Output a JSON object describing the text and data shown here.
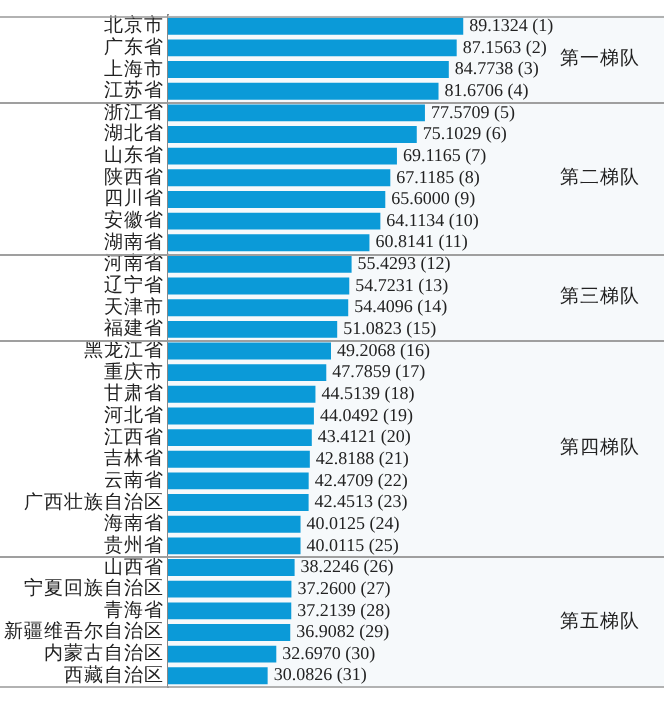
{
  "chart_data": {
    "type": "bar",
    "orientation": "horizontal",
    "categories": [
      "北京市",
      "广东省",
      "上海市",
      "江苏省",
      "浙江省",
      "湖北省",
      "山东省",
      "陕西省",
      "四川省",
      "安徽省",
      "湖南省",
      "河南省",
      "辽宁省",
      "天津市",
      "福建省",
      "黑龙江省",
      "重庆市",
      "甘肃省",
      "河北省",
      "江西省",
      "吉林省",
      "云南省",
      "广西壮族自治区",
      "海南省",
      "贵州省",
      "山西省",
      "宁夏回族自治区",
      "青海省",
      "新疆维吾尔自治区",
      "内蒙古自治区",
      "西藏自治区"
    ],
    "values": [
      89.1324,
      87.1563,
      84.7738,
      81.6706,
      77.5709,
      75.1029,
      69.1165,
      67.1185,
      65.6,
      64.1134,
      60.8141,
      55.4293,
      54.7231,
      54.4096,
      51.0823,
      49.2068,
      47.7859,
      44.5139,
      44.0492,
      43.4121,
      42.8188,
      42.4709,
      42.4513,
      40.0125,
      40.0115,
      38.2246,
      37.26,
      37.2139,
      36.9082,
      32.697,
      30.0826
    ],
    "value_labels": [
      "89.1324 (1)",
      "87.1563 (2)",
      "84.7738 (3)",
      "81.6706 (4)",
      "77.5709 (5)",
      "75.1029 (6)",
      "69.1165 (7)",
      "67.1185 (8)",
      "65.6000 (9)",
      "64.1134 (10)",
      "60.8141 (11)",
      "55.4293 (12)",
      "54.7231 (13)",
      "54.4096 (14)",
      "51.0823 (15)",
      "49.2068 (16)",
      "47.7859 (17)",
      "44.5139 (18)",
      "44.0492 (19)",
      "43.4121 (20)",
      "42.8188 (21)",
      "42.4709 (22)",
      "42.4513 (23)",
      "40.0125 (24)",
      "40.0115 (25)",
      "38.2246 (26)",
      "37.2600 (27)",
      "37.2139 (28)",
      "36.9082 (29)",
      "32.6970 (30)",
      "30.0826 (31)"
    ],
    "color": "#0b9ad8",
    "bands": [
      {
        "axis": "y",
        "from": "北京市",
        "to": "江苏省",
        "label": "第一梯队",
        "color": "#f6f9fb"
      },
      {
        "axis": "y",
        "from": "浙江省",
        "to": "湖南省",
        "label": "第二梯队",
        "color": "#f6f9fb"
      },
      {
        "axis": "y",
        "from": "河南省",
        "to": "福建省",
        "label": "第三梯队",
        "color": "#f6f9fb"
      },
      {
        "axis": "y",
        "from": "黑龙江省",
        "to": "贵州省",
        "label": "第四梯队",
        "color": "#f6f9fb"
      },
      {
        "axis": "y",
        "from": "山西省",
        "to": "西藏自治区",
        "label": "第五梯队",
        "color": "#f6f9fb"
      }
    ],
    "legend": false
  }
}
